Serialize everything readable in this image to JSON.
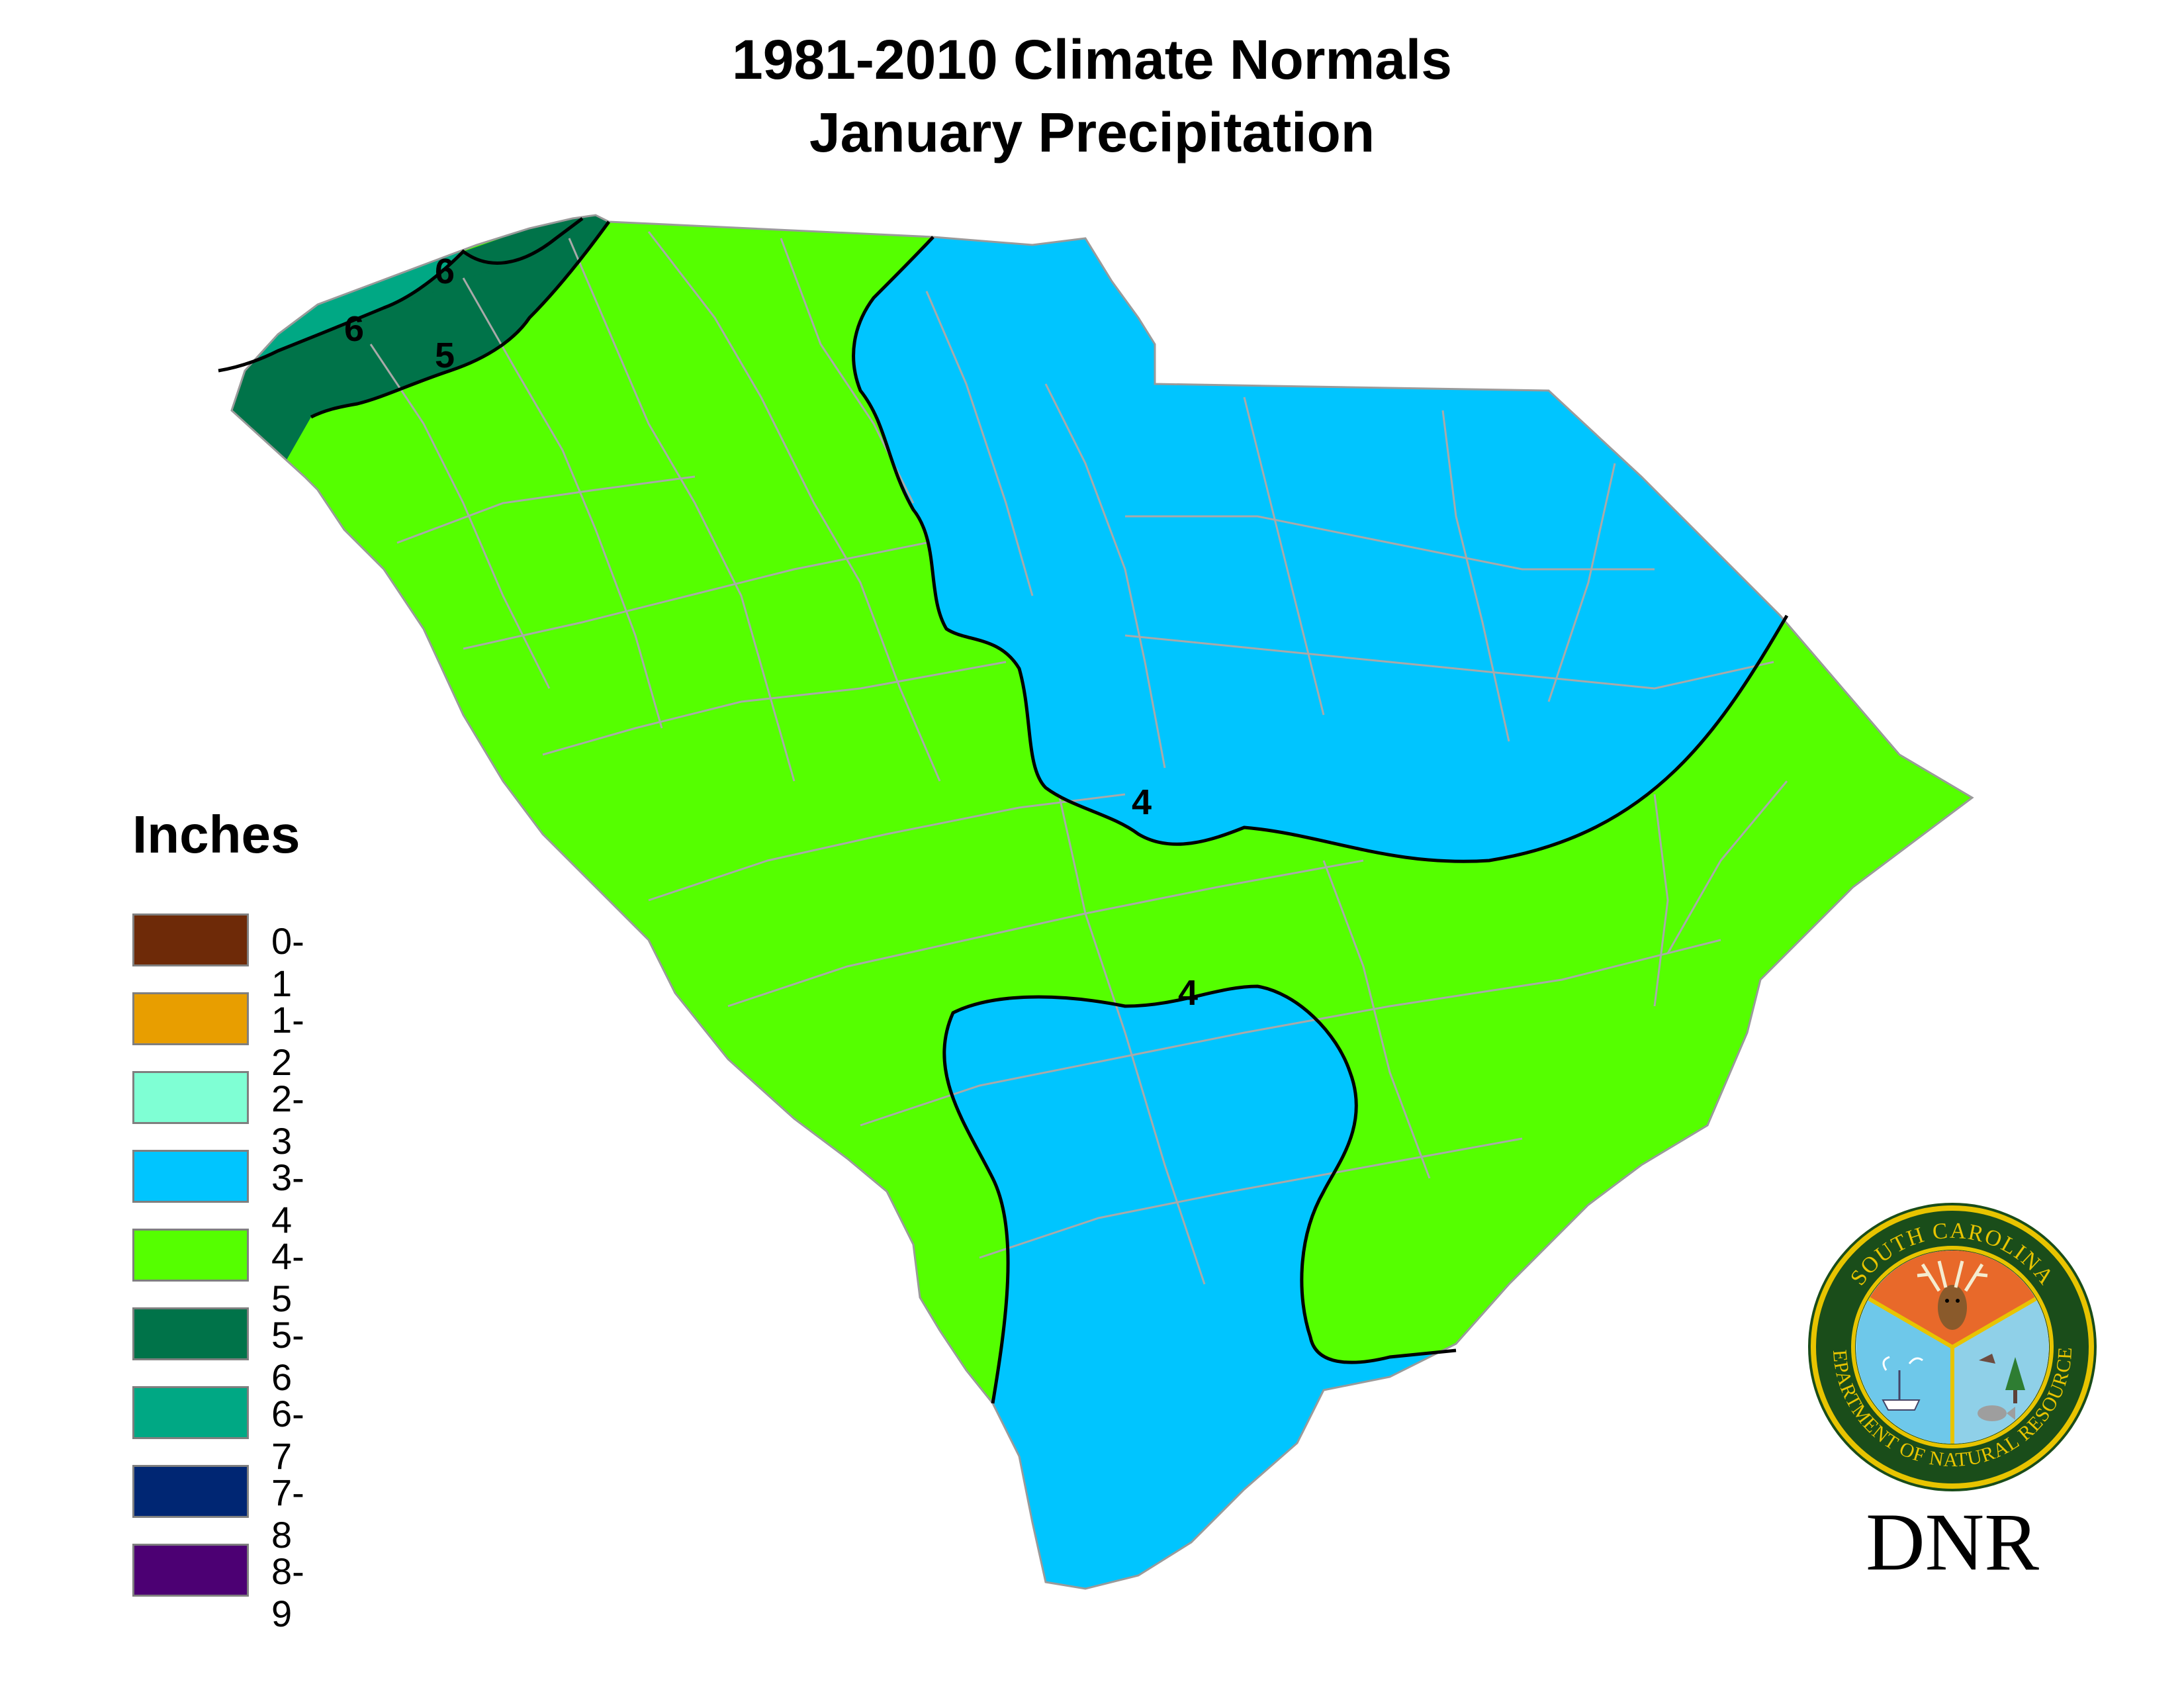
{
  "title": {
    "line1": "1981-2010 Climate Normals",
    "line2": "January Precipitation"
  },
  "legend": {
    "title": "Inches",
    "items": [
      {
        "label": "0-1",
        "color": "#6e2a08"
      },
      {
        "label": "1-2",
        "color": "#e89e00"
      },
      {
        "label": "2-3",
        "color": "#7fffd4"
      },
      {
        "label": "3-4",
        "color": "#00c5ff"
      },
      {
        "label": "4-5",
        "color": "#55ff00"
      },
      {
        "label": "5-6",
        "color": "#007349"
      },
      {
        "label": "6-7",
        "color": "#00a884"
      },
      {
        "label": "7-8",
        "color": "#002673"
      },
      {
        "label": "8-9",
        "color": "#4c0073"
      }
    ]
  },
  "map": {
    "region": "South Carolina",
    "isoline_labels": [
      "6",
      "6",
      "5",
      "4",
      "4"
    ]
  },
  "logo": {
    "ring_top_text": "SOUTH CAROLINA",
    "ring_bottom_text": "DEPARTMENT OF NATURAL RESOURCES",
    "abbreviation": "DNR"
  }
}
